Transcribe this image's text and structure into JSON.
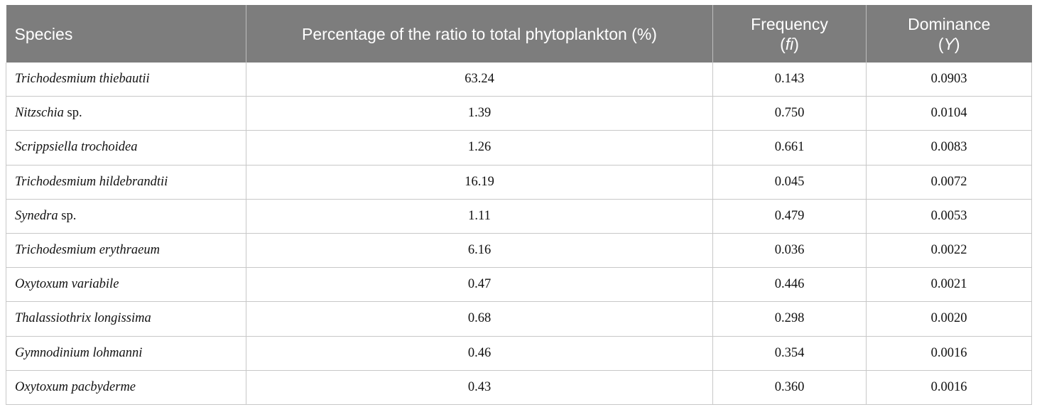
{
  "table": {
    "headers": {
      "species": "Species",
      "percentage": "Percentage of the ratio to total phytoplankton (%)",
      "frequency": "Frequency",
      "frequency_symbol_open": "(",
      "frequency_symbol": "fi",
      "frequency_symbol_close": ")",
      "dominance": "Dominance",
      "dominance_symbol_open": "(",
      "dominance_symbol": "Y",
      "dominance_symbol_close": ")"
    },
    "rows": [
      {
        "species_italic": "Trichodesmium thiebautii",
        "species_suffix": "",
        "percentage": "63.24",
        "frequency": "0.143",
        "dominance": "0.0903"
      },
      {
        "species_italic": "Nitzschia",
        "species_suffix": " sp.",
        "percentage": "1.39",
        "frequency": "0.750",
        "dominance": "0.0104"
      },
      {
        "species_italic": "Scrippsiella trochoidea",
        "species_suffix": "",
        "percentage": "1.26",
        "frequency": "0.661",
        "dominance": "0.0083"
      },
      {
        "species_italic": "Trichodesmium hildebrandtii",
        "species_suffix": "",
        "percentage": "16.19",
        "frequency": "0.045",
        "dominance": "0.0072"
      },
      {
        "species_italic": "Synedra",
        "species_suffix": " sp.",
        "percentage": "1.11",
        "frequency": "0.479",
        "dominance": "0.0053"
      },
      {
        "species_italic": "Trichodesmium erythraeum",
        "species_suffix": "",
        "percentage": "6.16",
        "frequency": "0.036",
        "dominance": "0.0022"
      },
      {
        "species_italic": "Oxytoxum variabile",
        "species_suffix": "",
        "percentage": "0.47",
        "frequency": "0.446",
        "dominance": "0.0021"
      },
      {
        "species_italic": "Thalassiothrix longissima",
        "species_suffix": "",
        "percentage": "0.68",
        "frequency": "0.298",
        "dominance": "0.0020"
      },
      {
        "species_italic": "Gymnodinium lohmanni",
        "species_suffix": "",
        "percentage": "0.46",
        "frequency": "0.354",
        "dominance": "0.0016"
      },
      {
        "species_italic": "Oxytoxum pacbyderme",
        "species_suffix": "",
        "percentage": "0.43",
        "frequency": "0.360",
        "dominance": "0.0016"
      }
    ]
  },
  "colors": {
    "header_bg": "#7d7d7d",
    "header_text": "#ffffff",
    "grid_line": "#c8c8c8"
  }
}
